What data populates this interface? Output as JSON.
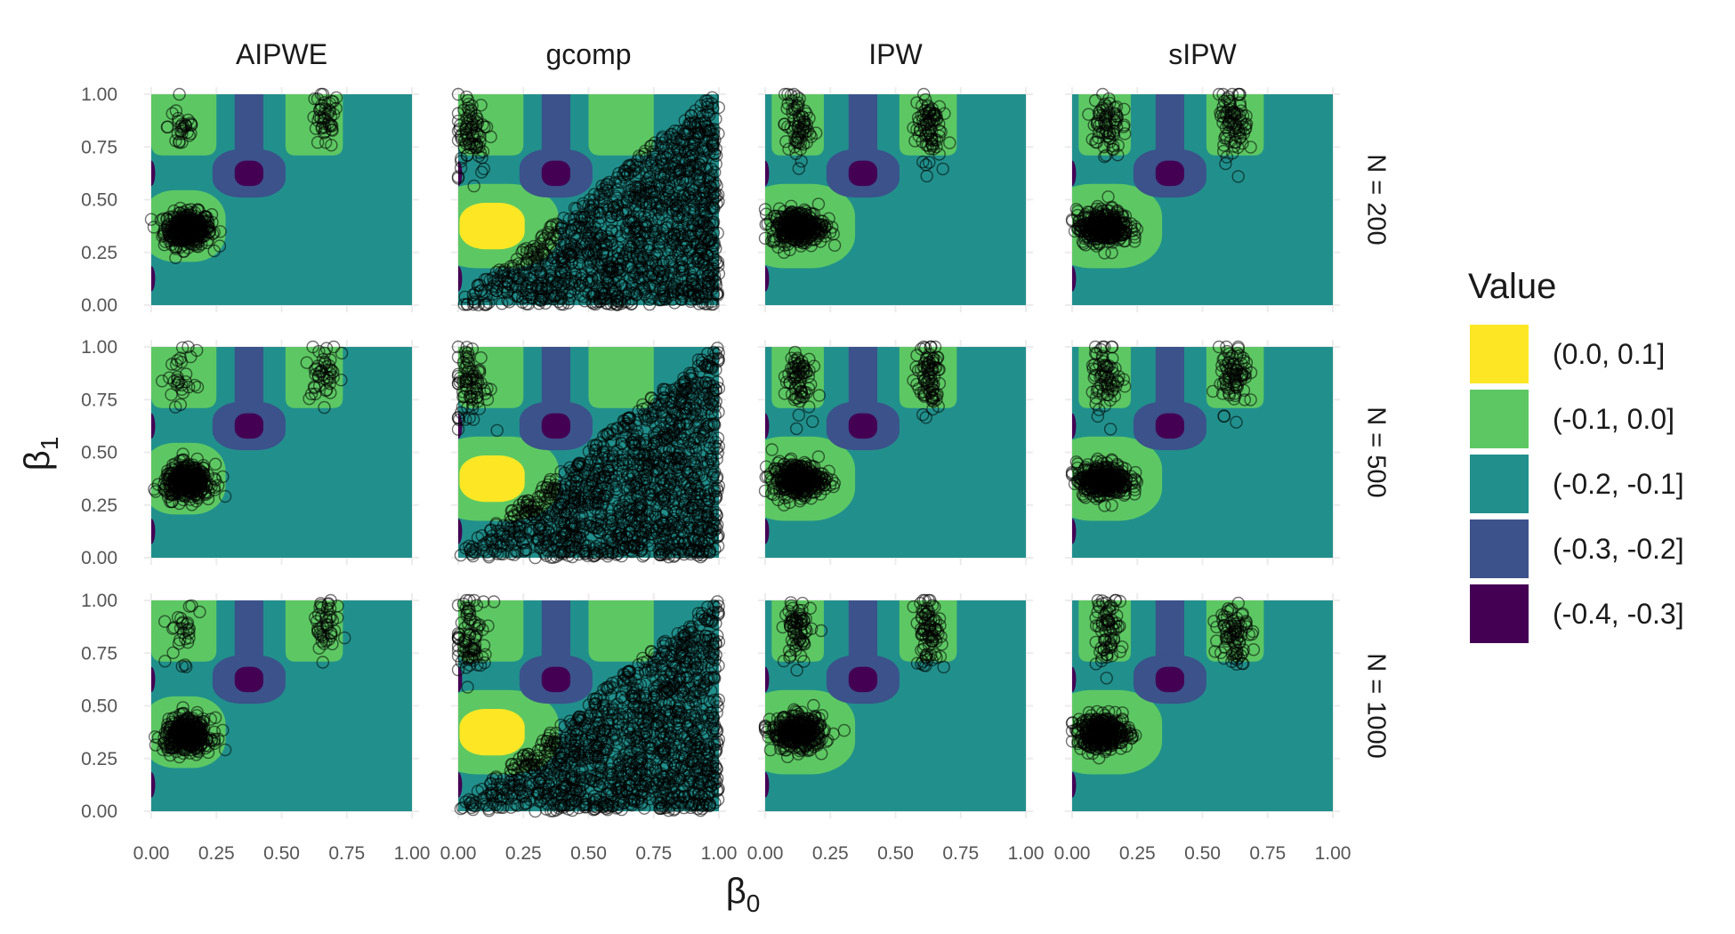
{
  "chart_data": {
    "type": "heatmap",
    "description_kind": "faceted contour plot with scatter overlay",
    "xlabel": "β",
    "xlabel_sub": "0",
    "ylabel": "β",
    "ylabel_sub": "1",
    "xlim": [
      0,
      1
    ],
    "ylim": [
      0,
      1
    ],
    "ticks": [
      0,
      0.25,
      0.5,
      0.75,
      1
    ],
    "tick_labels": [
      "0.00",
      "0.25",
      "0.50",
      "0.75",
      "1.00"
    ],
    "grid": true,
    "columns": [
      "AIPWE",
      "gcomp",
      "IPW",
      "sIPW"
    ],
    "rows": [
      "N = 200",
      "N = 500",
      "N = 1000"
    ],
    "legend": {
      "title": "Value",
      "position": "right",
      "bins": [
        {
          "label": "(0.0, 0.1]",
          "color": "#FDE725"
        },
        {
          "label": "(-0.1, 0.0]",
          "color": "#5DC863"
        },
        {
          "label": "(-0.2, -0.1]",
          "color": "#21908C"
        },
        {
          "label": "(-0.3, -0.2]",
          "color": "#3B528B"
        },
        {
          "label": "(-0.4, -0.3]",
          "color": "#440154"
        }
      ]
    },
    "background_regions": {
      "common": [
        {
          "shape": "column",
          "x": 0.375,
          "x_halfwidth": 0.055,
          "y_from": 0.62,
          "y_to": 1.0,
          "bin": "(-0.3, -0.2]"
        },
        {
          "shape": "ellipse",
          "cx": 0.375,
          "cy": 0.625,
          "rx": 0.14,
          "ry": 0.115,
          "bin": "(-0.3, -0.2]"
        },
        {
          "shape": "ellipse",
          "cx": 0.375,
          "cy": 0.625,
          "rx": 0.055,
          "ry": 0.06,
          "bin": "(-0.4, -0.3]"
        },
        {
          "shape": "edge-blob",
          "cx": 0.0,
          "cy": 0.625,
          "rx": 0.015,
          "ry": 0.06,
          "bin": "(-0.4, -0.3]"
        },
        {
          "shape": "edge-blob",
          "cx": 0.0,
          "cy": 0.125,
          "rx": 0.015,
          "ry": 0.06,
          "bin": "(-0.4, -0.3]"
        }
      ],
      "AIPWE": [
        {
          "shape": "pocket",
          "x": 0.125,
          "halfwidth": 0.125,
          "y_from": 0.71,
          "y_to": 1.0,
          "bin": "(-0.1, 0.0]"
        },
        {
          "shape": "pocket",
          "x": 0.625,
          "halfwidth": 0.11,
          "y_from": 0.71,
          "y_to": 1.0,
          "bin": "(-0.1, 0.0]"
        },
        {
          "shape": "ellipse",
          "cx": 0.125,
          "cy": 0.375,
          "rx": 0.16,
          "ry": 0.17,
          "bin": "(-0.1, 0.0]"
        }
      ],
      "gcomp": [
        {
          "shape": "pocket",
          "x": 0.125,
          "halfwidth": 0.125,
          "y_from": 0.71,
          "y_to": 1.0,
          "bin": "(-0.1, 0.0]"
        },
        {
          "shape": "pocket",
          "x": 0.625,
          "halfwidth": 0.125,
          "y_from": 0.71,
          "y_to": 1.0,
          "bin": "(-0.1, 0.0]"
        },
        {
          "shape": "ellipse",
          "cx": 0.135,
          "cy": 0.375,
          "rx": 0.25,
          "ry": 0.2,
          "bin": "(-0.1, 0.0]"
        },
        {
          "shape": "ellipse",
          "cx": 0.13,
          "cy": 0.375,
          "rx": 0.125,
          "ry": 0.11,
          "bin": "(0.0, 0.1]"
        }
      ],
      "IPW": [
        {
          "shape": "pocket",
          "x": 0.125,
          "halfwidth": 0.1,
          "y_from": 0.71,
          "y_to": 1.0,
          "bin": "(-0.1, 0.0]"
        },
        {
          "shape": "pocket",
          "x": 0.625,
          "halfwidth": 0.11,
          "y_from": 0.71,
          "y_to": 1.0,
          "bin": "(-0.1, 0.0]"
        },
        {
          "shape": "ellipse",
          "cx": 0.125,
          "cy": 0.375,
          "rx": 0.22,
          "ry": 0.2,
          "bin": "(-0.1, 0.0]"
        }
      ],
      "sIPW": [
        {
          "shape": "pocket",
          "x": 0.125,
          "halfwidth": 0.1,
          "y_from": 0.71,
          "y_to": 1.0,
          "bin": "(-0.1, 0.0]"
        },
        {
          "shape": "pocket",
          "x": 0.625,
          "halfwidth": 0.11,
          "y_from": 0.71,
          "y_to": 1.0,
          "bin": "(-0.1, 0.0]"
        },
        {
          "shape": "ellipse",
          "cx": 0.125,
          "cy": 0.375,
          "rx": 0.22,
          "ry": 0.2,
          "bin": "(-0.1, 0.0]"
        }
      ]
    },
    "point_clusters": {
      "AIPWE": [
        {
          "cx": 0.14,
          "cy": 0.36,
          "sx": 0.045,
          "sy": 0.04,
          "n": 340
        },
        {
          "cx": 0.12,
          "cy": 0.85,
          "sx": 0.028,
          "sy": 0.07,
          "n": 28
        },
        {
          "cx": 0.665,
          "cy": 0.875,
          "sx": 0.028,
          "sy": 0.07,
          "n": 44
        }
      ],
      "gcomp": [
        {
          "region": "triangle",
          "x_from": 0.0,
          "x_to": 1.0,
          "y_max_at_x1": 1.0,
          "n": 1300
        },
        {
          "cx": 0.05,
          "cy": 0.82,
          "sx": 0.035,
          "sy": 0.1,
          "n": 80
        }
      ],
      "IPW": [
        {
          "cx": 0.125,
          "cy": 0.37,
          "sx": 0.05,
          "sy": 0.04,
          "n": 320
        },
        {
          "cx": 0.125,
          "cy": 0.85,
          "sx": 0.025,
          "sy": 0.08,
          "n": 70
        },
        {
          "cx": 0.625,
          "cy": 0.85,
          "sx": 0.025,
          "sy": 0.08,
          "n": 80
        }
      ],
      "sIPW": [
        {
          "cx": 0.12,
          "cy": 0.37,
          "sx": 0.05,
          "sy": 0.04,
          "n": 320
        },
        {
          "cx": 0.13,
          "cy": 0.86,
          "sx": 0.028,
          "sy": 0.08,
          "n": 70
        },
        {
          "cx": 0.62,
          "cy": 0.86,
          "sx": 0.028,
          "sy": 0.08,
          "n": 80
        }
      ]
    }
  }
}
